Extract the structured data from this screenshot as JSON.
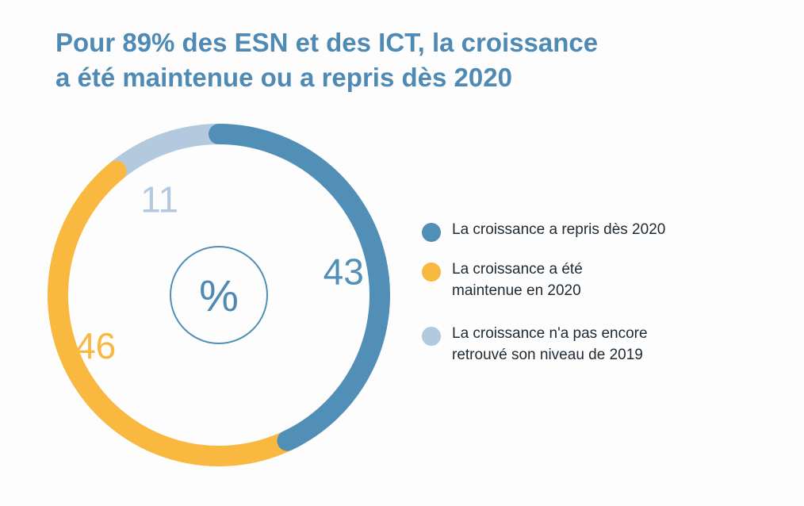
{
  "title_lines": [
    "Pour 89% des ESN et des ICT, la croissance",
    "a été maintenue ou a repris dès 2020"
  ],
  "chart_data": {
    "type": "pie",
    "variant": "donut",
    "title": "Pour 89% des ESN et des ICT, la croissance a été maintenue ou a repris dès 2020",
    "unit_label": "%",
    "start": "top",
    "direction": "clockwise",
    "slices": [
      {
        "label": "La croissance a repris dès 2020",
        "value": 43,
        "color": "#518fb7"
      },
      {
        "label": "La croissance a été maintenue en 2020",
        "value": 46,
        "color": "#f9b83f"
      },
      {
        "label": "La croissance n'a pas encore retrouvé son niveau de 2019",
        "value": 11,
        "color": "#b3c9dd"
      }
    ]
  },
  "legend": {
    "items": [
      {
        "lines": [
          "La croissance a repris dès 2020"
        ],
        "color": "#518fb7"
      },
      {
        "lines": [
          "La croissance a été",
          "maintenue en 2020"
        ],
        "color": "#f9b83f"
      },
      {
        "lines": [
          "La croissance n'a pas encore",
          "retrouvé son niveau de 2019"
        ],
        "color": "#b3c9dd"
      }
    ]
  }
}
